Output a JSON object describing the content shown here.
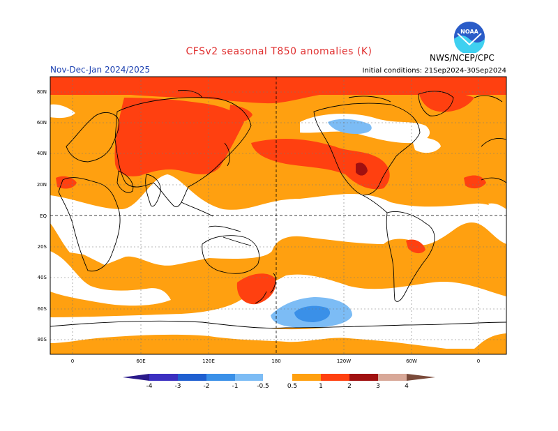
{
  "header": {
    "title": "CFSv2 seasonal T850 anomalies (K)",
    "subtitle": "Nov-Dec-Jan 2024/2025",
    "initial_conditions": "Initial conditions: 21Sep2024-30Sep2024",
    "agency": "NWS/NCEP/CPC",
    "logo_text": "NOAA"
  },
  "map": {
    "lat_labels": [
      "80N",
      "60N",
      "40N",
      "20N",
      "EQ",
      "20S",
      "40S",
      "60S",
      "80S"
    ],
    "lon_labels": [
      "0",
      "60E",
      "120E",
      "180",
      "120W",
      "60W",
      "0"
    ]
  },
  "colorbar": {
    "labels": [
      "-4",
      "-3",
      "-2",
      "-1",
      "-0.5",
      "0.5",
      "1",
      "2",
      "3",
      "4"
    ],
    "colors": {
      "lt_-4": "#2a1a8a",
      "-4_-3": "#3b2fc0",
      "-3_-2": "#1f5fd0",
      "-2_-1": "#3a90e8",
      "-1_-0.5": "#7cbcf5",
      "-0.5_0.5": "#ffffff",
      "0.5_1": "#ffa010",
      "1_2": "#ff4010",
      "2_3": "#a01010",
      "3_4": "#d8a898",
      "gt_4": "#7a4a3a"
    }
  }
}
